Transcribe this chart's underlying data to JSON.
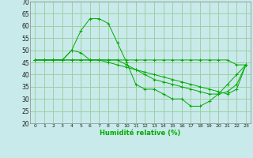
{
  "background_color": "#c8eaea",
  "grid_color": "#99cc99",
  "line_color": "#00aa00",
  "xlabel": "Humidité relative (%)",
  "xlim": [
    -0.5,
    23.5
  ],
  "ylim": [
    20,
    70
  ],
  "yticks": [
    20,
    25,
    30,
    35,
    40,
    45,
    50,
    55,
    60,
    65,
    70
  ],
  "xticks": [
    0,
    1,
    2,
    3,
    4,
    5,
    6,
    7,
    8,
    9,
    10,
    11,
    12,
    13,
    14,
    15,
    16,
    17,
    18,
    19,
    20,
    21,
    22,
    23
  ],
  "series": [
    {
      "x": [
        0,
        1,
        2,
        3,
        4,
        5,
        6,
        7,
        8,
        9,
        10,
        11,
        12,
        13,
        14,
        15,
        16,
        17,
        18,
        19,
        20,
        21,
        22,
        23
      ],
      "y": [
        46,
        46,
        46,
        46,
        50,
        49,
        46,
        46,
        46,
        46,
        46,
        46,
        46,
        46,
        46,
        46,
        46,
        46,
        46,
        46,
        46,
        46,
        44,
        44
      ]
    },
    {
      "x": [
        0,
        1,
        2,
        3,
        4,
        5,
        6,
        7,
        8,
        9,
        10,
        11,
        12,
        13,
        14,
        15,
        16,
        17,
        18,
        19,
        20,
        21,
        22,
        23
      ],
      "y": [
        46,
        46,
        46,
        46,
        50,
        58,
        63,
        63,
        61,
        53,
        45,
        36,
        34,
        34,
        32,
        30,
        30,
        27,
        27,
        29,
        32,
        36,
        40,
        44
      ]
    },
    {
      "x": [
        0,
        1,
        2,
        3,
        4,
        5,
        6,
        7,
        8,
        9,
        10,
        11,
        12,
        13,
        14,
        15,
        16,
        17,
        18,
        19,
        20,
        21,
        22,
        23
      ],
      "y": [
        46,
        46,
        46,
        46,
        46,
        46,
        46,
        46,
        46,
        46,
        44,
        42,
        40,
        38,
        37,
        36,
        35,
        34,
        33,
        32,
        32,
        33,
        36,
        44
      ]
    },
    {
      "x": [
        0,
        1,
        2,
        3,
        4,
        5,
        6,
        7,
        8,
        9,
        10,
        11,
        12,
        13,
        14,
        15,
        16,
        17,
        18,
        19,
        20,
        21,
        22,
        23
      ],
      "y": [
        46,
        46,
        46,
        46,
        46,
        46,
        46,
        46,
        45,
        44,
        43,
        42,
        41,
        40,
        39,
        38,
        37,
        36,
        35,
        34,
        33,
        32,
        34,
        44
      ]
    }
  ]
}
